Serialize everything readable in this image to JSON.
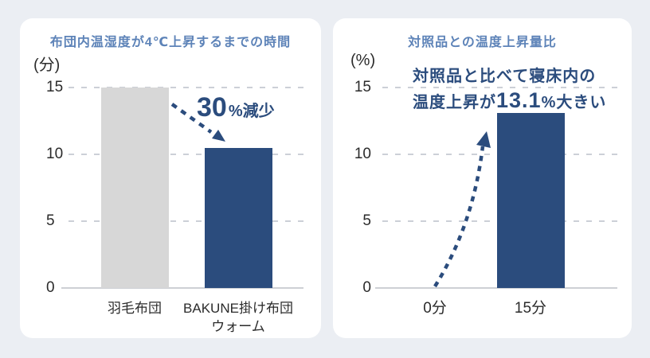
{
  "page": {
    "background_color": "#ebeef3",
    "card_color": "#ffffff"
  },
  "colors": {
    "title_blue": "#5d83b8",
    "navy": "#2b4c7d",
    "gray_bar": "#d7d7d7",
    "gridline": "#ccd0d7",
    "axis_text": "#2b2b2b"
  },
  "chart_data": [
    {
      "type": "bar",
      "title": "布団内温湿度が4℃上昇するまでの時間",
      "ylabel": "(分)",
      "categories": [
        "羽毛布団",
        "BAKUNE掛け布団\nウォーム"
      ],
      "values": [
        15,
        10.5
      ],
      "bar_colors": [
        "#d7d7d7",
        "#2b4c7d"
      ],
      "yticks": [
        0,
        5,
        10,
        15
      ],
      "ylim": [
        0,
        15
      ],
      "grid": "dashed-horizontal",
      "legend": "none",
      "annotation": {
        "value": "30",
        "suffix": "%減少"
      }
    },
    {
      "type": "bar",
      "title": "対照品との温度上昇量比",
      "ylabel": "(%)",
      "categories": [
        "0分",
        "15分"
      ],
      "values": [
        0,
        13.1
      ],
      "bar_colors": [
        "#2b4c7d",
        "#2b4c7d"
      ],
      "yticks": [
        0,
        5,
        10,
        15
      ],
      "ylim": [
        0,
        15
      ],
      "grid": "dashed-horizontal",
      "legend": "none",
      "annotation": {
        "line1": "対照品と比べて寝床内の",
        "line2_pre": "温度上昇が",
        "line2_value": "13.1",
        "line2_post": "%大きい"
      }
    }
  ]
}
